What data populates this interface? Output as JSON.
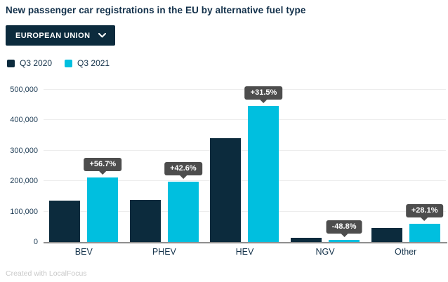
{
  "header": {
    "title": "New passenger car registrations in the EU by alternative fuel type"
  },
  "controls": {
    "region_dropdown": {
      "label": "EUROPEAN UNION"
    }
  },
  "footer": {
    "credit": "Created with LocalFocus"
  },
  "colors": {
    "navy": "#0c2b3d",
    "cyan": "#00bfdf",
    "tooltip_bg": "#4d4d4d",
    "text": "#16344c",
    "gridline": "#ededed",
    "baseline": "#8f8f8f"
  },
  "chart_data": {
    "type": "bar",
    "title": "New passenger car registrations in the EU by alternative fuel type",
    "categories": [
      "BEV",
      "PHEV",
      "HEV",
      "NGV",
      "Other"
    ],
    "series": [
      {
        "name": "Q3 2020",
        "color": "#0c2b3d",
        "values": [
          135700,
          138400,
          340600,
          13400,
          46600
        ]
      },
      {
        "name": "Q3 2021",
        "color": "#00bfdf",
        "values": [
          212600,
          197300,
          448100,
          6900,
          59700
        ]
      }
    ],
    "change_labels": [
      "+56.7%",
      "+42.6%",
      "+31.5%",
      "-48.8%",
      "+28.1%"
    ],
    "xlabel": "",
    "ylabel": "",
    "ylim": [
      0,
      500000
    ],
    "ytick_labels": [
      "0",
      "100,000",
      "200,000",
      "300,000",
      "400,000",
      "500,000"
    ],
    "grid": true,
    "legend_position": "top-left"
  }
}
